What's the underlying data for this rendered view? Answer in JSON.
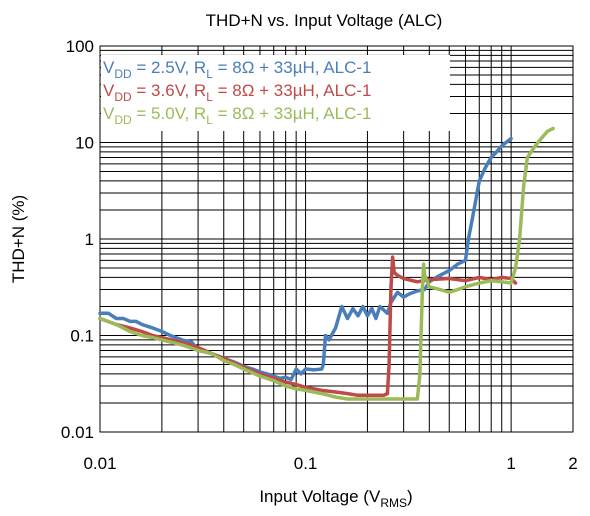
{
  "chart_data": {
    "type": "line",
    "title": "THD+N vs. Input Voltage (ALC)",
    "xlabel": {
      "main": "Input Voltage (V",
      "sub": "RMS",
      "tail": ")"
    },
    "ylabel": "THD+N (%)",
    "x_scale": "log",
    "y_scale": "log",
    "xlim": [
      0.01,
      2
    ],
    "ylim": [
      0.01,
      100
    ],
    "x_ticks": [
      {
        "value": 0.01,
        "label": "0.01"
      },
      {
        "value": 0.1,
        "label": "0.1"
      },
      {
        "value": 1,
        "label": "1"
      },
      {
        "value": 2,
        "label": "2"
      }
    ],
    "y_ticks": [
      {
        "value": 0.01,
        "label": "0.01"
      },
      {
        "value": 0.1,
        "label": "0.1"
      },
      {
        "value": 1,
        "label": "1"
      },
      {
        "value": 10,
        "label": "10"
      },
      {
        "value": 100,
        "label": "100"
      }
    ],
    "grid": true,
    "legend_position": "top-left",
    "series": [
      {
        "name": "VDD = 2.5V, RL = 8Ω + 33µH, ALC-1",
        "legend": {
          "a": "V",
          "a_sub": "DD",
          "b": " = 2.5V, R",
          "b_sub": "L",
          "c": " = 8Ω + 33µH, ALC-1"
        },
        "color": "#4a7ebb",
        "points": [
          [
            0.01,
            0.17
          ],
          [
            0.011,
            0.17
          ],
          [
            0.012,
            0.15
          ],
          [
            0.013,
            0.15
          ],
          [
            0.014,
            0.14
          ],
          [
            0.015,
            0.14
          ],
          [
            0.016,
            0.13
          ],
          [
            0.018,
            0.12
          ],
          [
            0.02,
            0.11
          ],
          [
            0.022,
            0.1
          ],
          [
            0.025,
            0.09
          ],
          [
            0.028,
            0.085
          ],
          [
            0.03,
            0.07
          ],
          [
            0.035,
            0.065
          ],
          [
            0.04,
            0.058
          ],
          [
            0.045,
            0.053
          ],
          [
            0.05,
            0.048
          ],
          [
            0.055,
            0.045
          ],
          [
            0.06,
            0.042
          ],
          [
            0.065,
            0.04
          ],
          [
            0.07,
            0.038
          ],
          [
            0.075,
            0.036
          ],
          [
            0.08,
            0.037
          ],
          [
            0.085,
            0.035
          ],
          [
            0.09,
            0.045
          ],
          [
            0.095,
            0.04
          ],
          [
            0.1,
            0.045
          ],
          [
            0.11,
            0.044
          ],
          [
            0.12,
            0.045
          ],
          [
            0.122,
            0.05
          ],
          [
            0.125,
            0.1
          ],
          [
            0.13,
            0.09
          ],
          [
            0.14,
            0.12
          ],
          [
            0.15,
            0.2
          ],
          [
            0.16,
            0.15
          ],
          [
            0.17,
            0.19
          ],
          [
            0.18,
            0.16
          ],
          [
            0.19,
            0.2
          ],
          [
            0.2,
            0.16
          ],
          [
            0.21,
            0.19
          ],
          [
            0.22,
            0.15
          ],
          [
            0.23,
            0.2
          ],
          [
            0.25,
            0.17
          ],
          [
            0.26,
            0.22
          ],
          [
            0.28,
            0.28
          ],
          [
            0.3,
            0.25
          ],
          [
            0.32,
            0.27
          ],
          [
            0.35,
            0.29
          ],
          [
            0.38,
            0.3
          ],
          [
            0.4,
            0.36
          ],
          [
            0.45,
            0.42
          ],
          [
            0.5,
            0.47
          ],
          [
            0.55,
            0.55
          ],
          [
            0.6,
            0.6
          ],
          [
            0.62,
            1.0
          ],
          [
            0.65,
            1.7
          ],
          [
            0.7,
            4.0
          ],
          [
            0.75,
            5.5
          ],
          [
            0.8,
            7.0
          ],
          [
            0.85,
            8.0
          ],
          [
            0.9,
            9.2
          ],
          [
            1.0,
            11.0
          ]
        ]
      },
      {
        "name": "VDD = 3.6V, RL = 8Ω + 33µH, ALC-1",
        "legend": {
          "a": "V",
          "a_sub": "DD",
          "b": " = 3.6V, R",
          "b_sub": "L",
          "c": " = 8Ω + 33µH, ALC-1"
        },
        "color": "#be4b48",
        "points": [
          [
            0.01,
            0.15
          ],
          [
            0.012,
            0.13
          ],
          [
            0.014,
            0.12
          ],
          [
            0.016,
            0.11
          ],
          [
            0.018,
            0.1
          ],
          [
            0.02,
            0.095
          ],
          [
            0.025,
            0.085
          ],
          [
            0.03,
            0.075
          ],
          [
            0.035,
            0.065
          ],
          [
            0.04,
            0.058
          ],
          [
            0.045,
            0.052
          ],
          [
            0.05,
            0.047
          ],
          [
            0.06,
            0.04
          ],
          [
            0.07,
            0.036
          ],
          [
            0.08,
            0.033
          ],
          [
            0.09,
            0.031
          ],
          [
            0.1,
            0.029
          ],
          [
            0.12,
            0.027
          ],
          [
            0.14,
            0.026
          ],
          [
            0.16,
            0.025
          ],
          [
            0.18,
            0.024
          ],
          [
            0.2,
            0.024
          ],
          [
            0.22,
            0.024
          ],
          [
            0.24,
            0.024
          ],
          [
            0.25,
            0.025
          ],
          [
            0.255,
            0.05
          ],
          [
            0.26,
            0.3
          ],
          [
            0.265,
            0.65
          ],
          [
            0.27,
            0.45
          ],
          [
            0.28,
            0.42
          ],
          [
            0.3,
            0.39
          ],
          [
            0.35,
            0.36
          ],
          [
            0.4,
            0.38
          ],
          [
            0.5,
            0.39
          ],
          [
            0.6,
            0.37
          ],
          [
            0.7,
            0.4
          ],
          [
            0.8,
            0.38
          ],
          [
            0.9,
            0.4
          ],
          [
            1.0,
            0.39
          ],
          [
            1.05,
            0.35
          ]
        ]
      },
      {
        "name": "VDD = 5.0V, RL = 8Ω + 33µH, ALC-1",
        "legend": {
          "a": "V",
          "a_sub": "DD",
          "b": " = 5.0V, R",
          "b_sub": "L",
          "c": " = 8Ω + 33µH, ALC-1"
        },
        "color": "#9bbb59",
        "points": [
          [
            0.01,
            0.15
          ],
          [
            0.012,
            0.13
          ],
          [
            0.014,
            0.11
          ],
          [
            0.016,
            0.1
          ],
          [
            0.018,
            0.095
          ],
          [
            0.02,
            0.09
          ],
          [
            0.025,
            0.08
          ],
          [
            0.03,
            0.07
          ],
          [
            0.035,
            0.065
          ],
          [
            0.04,
            0.055
          ],
          [
            0.045,
            0.05
          ],
          [
            0.05,
            0.045
          ],
          [
            0.06,
            0.038
          ],
          [
            0.07,
            0.034
          ],
          [
            0.08,
            0.03
          ],
          [
            0.09,
            0.028
          ],
          [
            0.1,
            0.027
          ],
          [
            0.12,
            0.025
          ],
          [
            0.14,
            0.023
          ],
          [
            0.16,
            0.022
          ],
          [
            0.2,
            0.022
          ],
          [
            0.25,
            0.022
          ],
          [
            0.3,
            0.022
          ],
          [
            0.35,
            0.022
          ],
          [
            0.36,
            0.04
          ],
          [
            0.37,
            0.3
          ],
          [
            0.375,
            0.55
          ],
          [
            0.38,
            0.42
          ],
          [
            0.4,
            0.32
          ],
          [
            0.45,
            0.3
          ],
          [
            0.5,
            0.28
          ],
          [
            0.55,
            0.3
          ],
          [
            0.6,
            0.32
          ],
          [
            0.7,
            0.35
          ],
          [
            0.8,
            0.37
          ],
          [
            0.9,
            0.36
          ],
          [
            1.0,
            0.35
          ],
          [
            1.05,
            0.5
          ],
          [
            1.1,
            1.0
          ],
          [
            1.15,
            3.5
          ],
          [
            1.2,
            7.0
          ],
          [
            1.3,
            9.0
          ],
          [
            1.4,
            11.0
          ],
          [
            1.5,
            13.0
          ],
          [
            1.6,
            14.0
          ]
        ]
      }
    ]
  }
}
